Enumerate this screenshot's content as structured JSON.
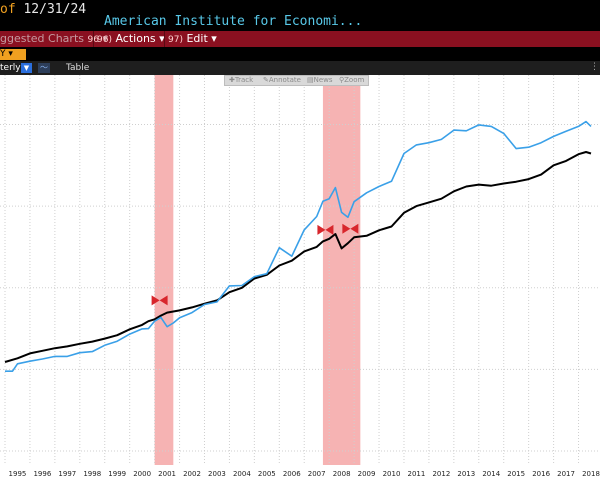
{
  "header": {
    "date_prefix": "of",
    "date": "12/31/24",
    "title": "American Institute for Economi..."
  },
  "menu": {
    "suggested": "ggested Charts",
    "suggested_num": "96",
    "actions_num": "96)",
    "actions": "Actions",
    "edit_num": "97)",
    "edit": "Edit"
  },
  "controls": {
    "tag": "Y",
    "frequency": "terly",
    "table": "Table"
  },
  "chart_tools": {
    "track": "Track",
    "annotate": "Annotate",
    "news": "News",
    "zoom": "Zoom"
  },
  "chart_data": {
    "type": "line",
    "xlim": [
      1995,
      2018.5
    ],
    "ylim": [
      0,
      100
    ],
    "x_ticks": [
      "1995",
      "1996",
      "1997",
      "1998",
      "1999",
      "2000",
      "2001",
      "2002",
      "2003",
      "2004",
      "2005",
      "2006",
      "2007",
      "2008",
      "2009",
      "2010",
      "2011",
      "2012",
      "2013",
      "2014",
      "2015",
      "2016",
      "2017",
      "2018"
    ],
    "recessions": [
      [
        2001.0,
        2001.75
      ],
      [
        2007.75,
        2009.25
      ]
    ],
    "grid": true,
    "colors": {
      "black": "#000000",
      "blue": "#3aa0e8",
      "recession": "#f4a6a6",
      "marker": "#d8262c"
    },
    "markers": [
      [
        2001.2,
        40.6
      ],
      [
        2007.85,
        59.6
      ],
      [
        2008.85,
        59.9
      ]
    ],
    "series": [
      {
        "color": "#000000",
        "points": [
          [
            1995,
            24
          ],
          [
            1995.5,
            25
          ],
          [
            1996,
            26.3
          ],
          [
            1996.5,
            27
          ],
          [
            1997,
            27.7
          ],
          [
            1997.5,
            28.2
          ],
          [
            1998,
            28.9
          ],
          [
            1998.5,
            29.5
          ],
          [
            1999,
            30.3
          ],
          [
            1999.5,
            31.2
          ],
          [
            2000,
            32.8
          ],
          [
            2000.5,
            34
          ],
          [
            2000.75,
            35
          ],
          [
            2001,
            35.5
          ],
          [
            2001.25,
            36.5
          ],
          [
            2001.5,
            37.3
          ],
          [
            2001.75,
            37.6
          ],
          [
            2002,
            37.9
          ],
          [
            2002.5,
            38.7
          ],
          [
            2003,
            39.7
          ],
          [
            2003.5,
            40.6
          ],
          [
            2004,
            42.8
          ],
          [
            2004.5,
            44
          ],
          [
            2005,
            46.5
          ],
          [
            2005.5,
            47.5
          ],
          [
            2006,
            50
          ],
          [
            2006.5,
            51.3
          ],
          [
            2007,
            53.8
          ],
          [
            2007.5,
            55
          ],
          [
            2007.75,
            56.5
          ],
          [
            2008,
            57.2
          ],
          [
            2008.25,
            58.5
          ],
          [
            2008.5,
            54.6
          ],
          [
            2008.75,
            56
          ],
          [
            2009,
            57.6
          ],
          [
            2009.5,
            58
          ],
          [
            2010,
            59.5
          ],
          [
            2010.5,
            60.5
          ],
          [
            2011,
            64.2
          ],
          [
            2011.5,
            66
          ],
          [
            2012,
            67
          ],
          [
            2012.5,
            68
          ],
          [
            2013,
            70
          ],
          [
            2013.5,
            71.3
          ],
          [
            2014,
            71.8
          ],
          [
            2014.5,
            71.5
          ],
          [
            2015,
            72.1
          ],
          [
            2015.5,
            72.6
          ],
          [
            2016,
            73.3
          ],
          [
            2016.5,
            74.5
          ],
          [
            2017,
            77
          ],
          [
            2017.5,
            78.2
          ],
          [
            2018,
            80
          ],
          [
            2018.3,
            80.6
          ],
          [
            2018.5,
            80.2
          ]
        ]
      },
      {
        "color": "#3aa0e8",
        "points": [
          [
            1995,
            21.5
          ],
          [
            1995.3,
            21.5
          ],
          [
            1995.5,
            23.5
          ],
          [
            1996,
            24.2
          ],
          [
            1996.5,
            24.8
          ],
          [
            1997,
            25.5
          ],
          [
            1997.5,
            25.5
          ],
          [
            1998,
            26.5
          ],
          [
            1998.5,
            26.8
          ],
          [
            1999,
            28.5
          ],
          [
            1999.5,
            29.6
          ],
          [
            2000,
            31.5
          ],
          [
            2000.5,
            32.9
          ],
          [
            2000.75,
            33
          ],
          [
            2001,
            35
          ],
          [
            2001.25,
            36
          ],
          [
            2001.5,
            33.5
          ],
          [
            2001.75,
            34.5
          ],
          [
            2002,
            35.9
          ],
          [
            2002.5,
            37.3
          ],
          [
            2003,
            39.5
          ],
          [
            2003.5,
            40.2
          ],
          [
            2004,
            44.5
          ],
          [
            2004.5,
            44.6
          ],
          [
            2005,
            47
          ],
          [
            2005.5,
            47.8
          ],
          [
            2006,
            54.8
          ],
          [
            2006.5,
            52.5
          ],
          [
            2007,
            59.6
          ],
          [
            2007.5,
            63.2
          ],
          [
            2007.75,
            67.3
          ],
          [
            2008,
            68
          ],
          [
            2008.25,
            71
          ],
          [
            2008.5,
            64.3
          ],
          [
            2008.75,
            63
          ],
          [
            2009,
            67.2
          ],
          [
            2009.5,
            69.6
          ],
          [
            2010,
            71.3
          ],
          [
            2010.5,
            72.7
          ],
          [
            2011,
            80.2
          ],
          [
            2011.5,
            82.5
          ],
          [
            2012,
            83.1
          ],
          [
            2012.5,
            84
          ],
          [
            2013,
            86.5
          ],
          [
            2013.5,
            86.3
          ],
          [
            2014,
            87.9
          ],
          [
            2014.5,
            87.5
          ],
          [
            2015,
            85.6
          ],
          [
            2015.5,
            81.5
          ],
          [
            2016,
            81.9
          ],
          [
            2016.5,
            83.1
          ],
          [
            2017,
            84.8
          ],
          [
            2017.5,
            86.2
          ],
          [
            2018,
            87.5
          ],
          [
            2018.3,
            88.8
          ],
          [
            2018.5,
            87.5
          ]
        ]
      }
    ]
  }
}
